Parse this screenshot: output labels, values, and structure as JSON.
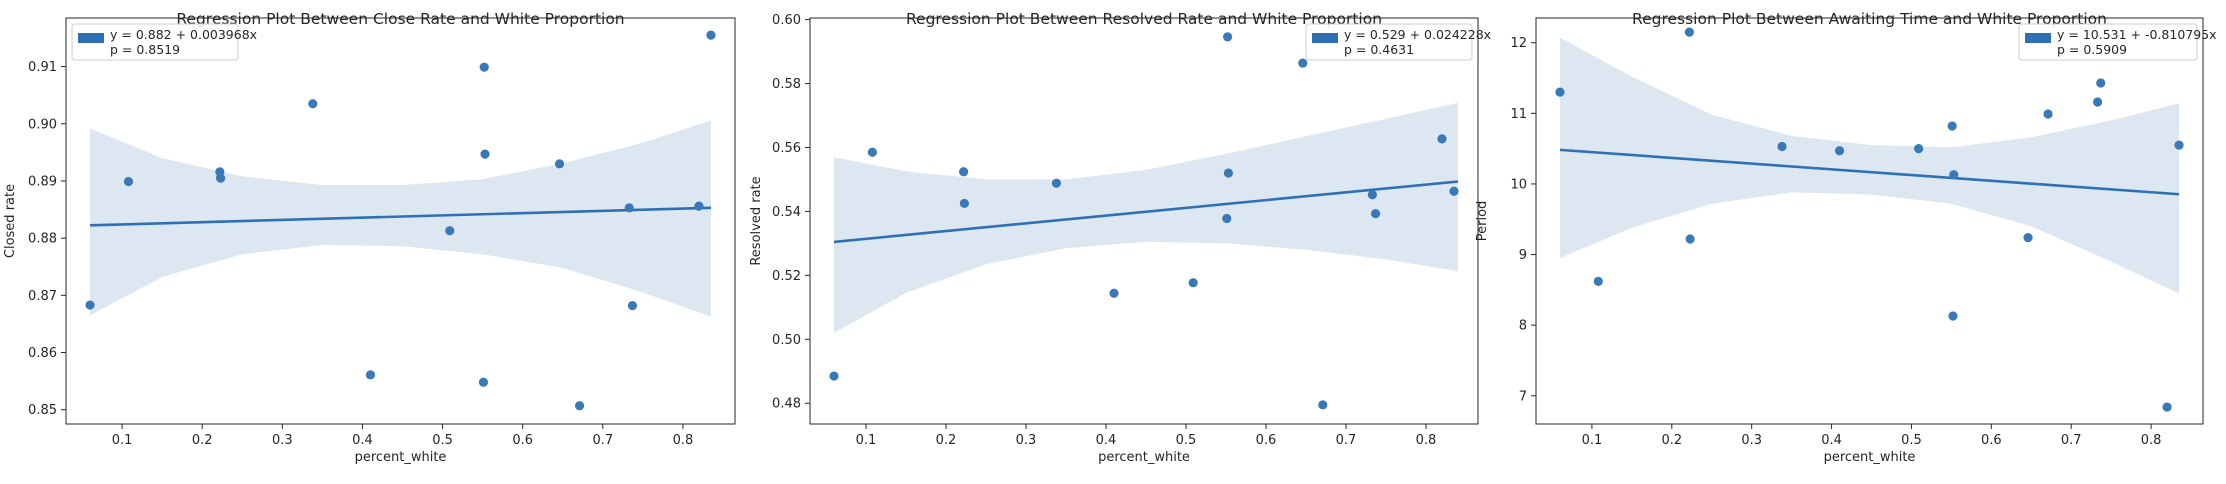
{
  "chart_data": [
    {
      "type": "scatter",
      "title": "Regression Plot Between Close Rate and White Proportion",
      "xlabel": "percent_white",
      "ylabel": "Closed rate",
      "xlim": [
        0.03,
        0.865
      ],
      "ylim": [
        0.8475,
        0.9185
      ],
      "xticks": [
        0.1,
        0.2,
        0.3,
        0.4,
        0.5,
        0.6,
        0.7,
        0.8
      ],
      "xtick_labels": [
        "0.1",
        "0.2",
        "0.3",
        "0.4",
        "0.5",
        "0.6",
        "0.7",
        "0.8"
      ],
      "yticks": [
        0.85,
        0.86,
        0.87,
        0.88,
        0.89,
        0.9,
        0.91
      ],
      "ytick_labels": [
        "0.85",
        "0.86",
        "0.87",
        "0.88",
        "0.89",
        "0.90",
        "0.91"
      ],
      "legend": {
        "line1": "y = 0.882 + 0.003968x",
        "line2": "p = 0.8519",
        "position": "upper-left"
      },
      "regression": {
        "intercept": 0.882,
        "slope": 0.003968
      },
      "ci": {
        "x": [
          0.06,
          0.15,
          0.25,
          0.35,
          0.45,
          0.55,
          0.65,
          0.75,
          0.835
        ],
        "lower": [
          0.8665,
          0.8732,
          0.8772,
          0.8788,
          0.8786,
          0.8772,
          0.8748,
          0.8705,
          0.8663
        ],
        "upper": [
          0.8992,
          0.894,
          0.8908,
          0.8893,
          0.8893,
          0.8903,
          0.8931,
          0.8967,
          0.9006
        ]
      },
      "points": [
        {
          "x": 0.06,
          "y": 0.8683
        },
        {
          "x": 0.108,
          "y": 0.8899
        },
        {
          "x": 0.222,
          "y": 0.8916
        },
        {
          "x": 0.223,
          "y": 0.8905
        },
        {
          "x": 0.338,
          "y": 0.9035
        },
        {
          "x": 0.41,
          "y": 0.8561
        },
        {
          "x": 0.509,
          "y": 0.8813
        },
        {
          "x": 0.551,
          "y": 0.8548
        },
        {
          "x": 0.552,
          "y": 0.9099
        },
        {
          "x": 0.553,
          "y": 0.8947
        },
        {
          "x": 0.646,
          "y": 0.893
        },
        {
          "x": 0.671,
          "y": 0.8507
        },
        {
          "x": 0.733,
          "y": 0.8853
        },
        {
          "x": 0.737,
          "y": 0.8682
        },
        {
          "x": 0.82,
          "y": 0.8856
        },
        {
          "x": 0.835,
          "y": 0.9155
        }
      ]
    },
    {
      "type": "scatter",
      "title": "Regression Plot Between Resolved Rate and White Proportion",
      "xlabel": "percent_white",
      "ylabel": "Resolved rate",
      "xlim": [
        0.03,
        0.865
      ],
      "ylim": [
        0.4735,
        0.6005
      ],
      "xticks": [
        0.1,
        0.2,
        0.3,
        0.4,
        0.5,
        0.6,
        0.7,
        0.8
      ],
      "xtick_labels": [
        "0.1",
        "0.2",
        "0.3",
        "0.4",
        "0.5",
        "0.6",
        "0.7",
        "0.8"
      ],
      "yticks": [
        0.48,
        0.5,
        0.52,
        0.54,
        0.56,
        0.58,
        0.6
      ],
      "ytick_labels": [
        "0.48",
        "0.50",
        "0.52",
        "0.54",
        "0.56",
        "0.58",
        "0.60"
      ],
      "legend": {
        "line1": "y = 0.529 + 0.024228x",
        "line2": "p = 0.4631",
        "position": "upper-right"
      },
      "regression": {
        "intercept": 0.529,
        "slope": 0.024228
      },
      "ci": {
        "x": [
          0.06,
          0.15,
          0.25,
          0.35,
          0.45,
          0.55,
          0.65,
          0.75,
          0.84
        ],
        "lower": [
          0.502,
          0.5145,
          0.5235,
          0.5285,
          0.5305,
          0.53,
          0.528,
          0.525,
          0.5213
        ],
        "upper": [
          0.557,
          0.5525,
          0.55,
          0.55,
          0.553,
          0.558,
          0.5635,
          0.569,
          0.574
        ]
      },
      "points": [
        {
          "x": 0.06,
          "y": 0.4885
        },
        {
          "x": 0.108,
          "y": 0.5585
        },
        {
          "x": 0.222,
          "y": 0.5524
        },
        {
          "x": 0.223,
          "y": 0.5425
        },
        {
          "x": 0.338,
          "y": 0.5488
        },
        {
          "x": 0.41,
          "y": 0.5144
        },
        {
          "x": 0.509,
          "y": 0.5177
        },
        {
          "x": 0.551,
          "y": 0.5378
        },
        {
          "x": 0.552,
          "y": 0.5946
        },
        {
          "x": 0.553,
          "y": 0.552
        },
        {
          "x": 0.646,
          "y": 0.5864
        },
        {
          "x": 0.671,
          "y": 0.4795
        },
        {
          "x": 0.733,
          "y": 0.5452
        },
        {
          "x": 0.737,
          "y": 0.5393
        },
        {
          "x": 0.82,
          "y": 0.5627
        },
        {
          "x": 0.835,
          "y": 0.5463
        }
      ]
    },
    {
      "type": "scatter",
      "title": "Regression Plot Between Awaiting Time and White Proportion",
      "xlabel": "percent_white",
      "ylabel": "Period",
      "xlim": [
        0.03,
        0.865
      ],
      "ylim": [
        6.6,
        12.35
      ],
      "xticks": [
        0.1,
        0.2,
        0.3,
        0.4,
        0.5,
        0.6,
        0.7,
        0.8
      ],
      "xtick_labels": [
        "0.1",
        "0.2",
        "0.3",
        "0.4",
        "0.5",
        "0.6",
        "0.7",
        "0.8"
      ],
      "yticks": [
        7,
        8,
        9,
        10,
        11,
        12
      ],
      "ytick_labels": [
        "7",
        "8",
        "9",
        "10",
        "11",
        "12"
      ],
      "legend": {
        "line1": "y = 10.531 + -0.810795x",
        "line2": "p = 0.5909",
        "position": "upper-right"
      },
      "regression": {
        "intercept": 10.531,
        "slope": -0.810795
      },
      "ci": {
        "x": [
          0.06,
          0.15,
          0.25,
          0.35,
          0.45,
          0.55,
          0.65,
          0.75,
          0.835
        ],
        "lower": [
          8.95,
          9.38,
          9.72,
          9.88,
          9.85,
          9.72,
          9.4,
          8.9,
          8.45
        ],
        "upper": [
          12.07,
          11.52,
          10.98,
          10.68,
          10.55,
          10.52,
          10.66,
          10.9,
          11.14
        ]
      },
      "points": [
        {
          "x": 0.06,
          "y": 11.3
        },
        {
          "x": 0.108,
          "y": 8.62
        },
        {
          "x": 0.222,
          "y": 12.15
        },
        {
          "x": 0.223,
          "y": 9.22
        },
        {
          "x": 0.338,
          "y": 10.53
        },
        {
          "x": 0.41,
          "y": 10.47
        },
        {
          "x": 0.509,
          "y": 10.5
        },
        {
          "x": 0.551,
          "y": 10.82
        },
        {
          "x": 0.552,
          "y": 8.13
        },
        {
          "x": 0.553,
          "y": 10.13
        },
        {
          "x": 0.646,
          "y": 9.24
        },
        {
          "x": 0.671,
          "y": 10.99
        },
        {
          "x": 0.733,
          "y": 11.16
        },
        {
          "x": 0.737,
          "y": 11.43
        },
        {
          "x": 0.82,
          "y": 6.84
        },
        {
          "x": 0.835,
          "y": 10.55
        }
      ]
    }
  ]
}
